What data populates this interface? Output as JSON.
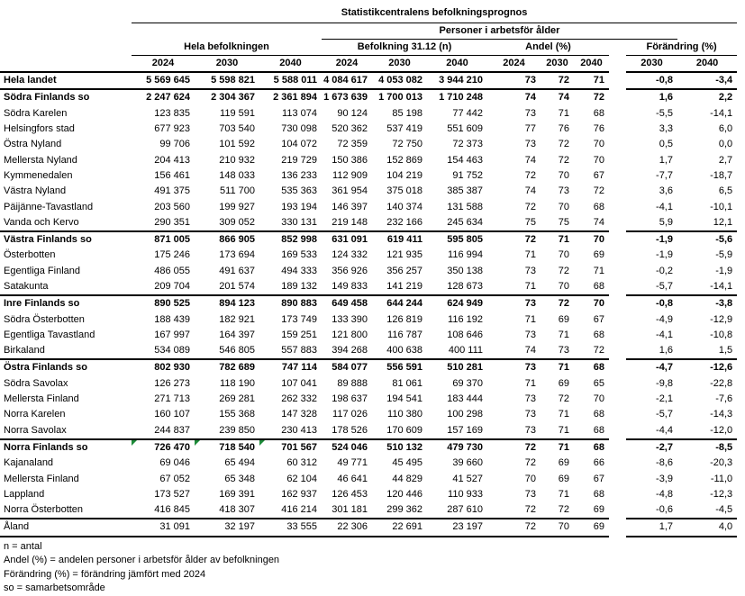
{
  "title": "Statistikcentralens befolkningsprognos",
  "header": {
    "working_age_label": "Personer i arbetsför ålder",
    "groups": [
      {
        "label": "Hela befolkningen",
        "years": [
          "2024",
          "2030",
          "2040"
        ]
      },
      {
        "label": "Befolkning 31.12 (n)",
        "years": [
          "2024",
          "2030",
          "2040"
        ]
      },
      {
        "label": "Andel (%)",
        "years": [
          "2024",
          "2030",
          "2040"
        ]
      },
      {
        "label": "Förändring (%)",
        "years": [
          "2030",
          "2040"
        ]
      }
    ]
  },
  "colors": {
    "error_flag_green": "#1f8c3b",
    "text": "#000000",
    "background": "#ffffff"
  },
  "table": {
    "separator_row_indices": [
      1,
      10,
      14,
      18,
      23,
      28
    ],
    "rows": [
      {
        "name": "Hela landet",
        "bold": true,
        "values": [
          "5 569 645",
          "5 598 821",
          "5 588 011",
          "4 084 617",
          "4 053 082",
          "3 944 210",
          "73",
          "72",
          "71",
          "-0,8",
          "-3,4"
        ]
      },
      {
        "name": "Södra Finlands so",
        "bold": true,
        "values": [
          "2 247 624",
          "2 304 367",
          "2 361 894",
          "1 673 639",
          "1 700 013",
          "1 710 248",
          "74",
          "74",
          "72",
          "1,6",
          "2,2"
        ]
      },
      {
        "name": "Södra Karelen",
        "bold": false,
        "values": [
          "123 835",
          "119 591",
          "113 074",
          "90 124",
          "85 198",
          "77 442",
          "73",
          "71",
          "68",
          "-5,5",
          "-14,1"
        ]
      },
      {
        "name": "Helsingfors stad",
        "bold": false,
        "values": [
          "677 923",
          "703 540",
          "730 098",
          "520 362",
          "537 419",
          "551 609",
          "77",
          "76",
          "76",
          "3,3",
          "6,0"
        ]
      },
      {
        "name": "Östra Nyland",
        "bold": false,
        "values": [
          "99 706",
          "101 592",
          "104 072",
          "72 359",
          "72 750",
          "72 373",
          "73",
          "72",
          "70",
          "0,5",
          "0,0"
        ]
      },
      {
        "name": "Mellersta Nyland",
        "bold": false,
        "values": [
          "204 413",
          "210 932",
          "219 729",
          "150 386",
          "152 869",
          "154 463",
          "74",
          "72",
          "70",
          "1,7",
          "2,7"
        ]
      },
      {
        "name": "Kymmenedalen",
        "bold": false,
        "values": [
          "156 461",
          "148 033",
          "136 233",
          "112 909",
          "104 219",
          "91 752",
          "72",
          "70",
          "67",
          "-7,7",
          "-18,7"
        ]
      },
      {
        "name": "Västra Nyland",
        "bold": false,
        "values": [
          "491 375",
          "511 700",
          "535 363",
          "361 954",
          "375 018",
          "385 387",
          "74",
          "73",
          "72",
          "3,6",
          "6,5"
        ]
      },
      {
        "name": "Päijänne-Tavastland",
        "bold": false,
        "values": [
          "203 560",
          "199 927",
          "193 194",
          "146 397",
          "140 374",
          "131 588",
          "72",
          "70",
          "68",
          "-4,1",
          "-10,1"
        ]
      },
      {
        "name": "Vanda och Kervo",
        "bold": false,
        "values": [
          "290 351",
          "309 052",
          "330 131",
          "219 148",
          "232 166",
          "245 634",
          "75",
          "75",
          "74",
          "5,9",
          "12,1"
        ]
      },
      {
        "name": "Västra Finlands so",
        "bold": true,
        "values": [
          "871 005",
          "866 905",
          "852 998",
          "631 091",
          "619 411",
          "595 805",
          "72",
          "71",
          "70",
          "-1,9",
          "-5,6"
        ]
      },
      {
        "name": "Österbotten",
        "bold": false,
        "values": [
          "175 246",
          "173 694",
          "169 533",
          "124 332",
          "121 935",
          "116 994",
          "71",
          "70",
          "69",
          "-1,9",
          "-5,9"
        ]
      },
      {
        "name": "Egentliga Finland",
        "bold": false,
        "values": [
          "486 055",
          "491 637",
          "494 333",
          "356 926",
          "356 257",
          "350 138",
          "73",
          "72",
          "71",
          "-0,2",
          "-1,9"
        ]
      },
      {
        "name": "Satakunta",
        "bold": false,
        "values": [
          "209 704",
          "201 574",
          "189 132",
          "149 833",
          "141 219",
          "128 673",
          "71",
          "70",
          "68",
          "-5,7",
          "-14,1"
        ]
      },
      {
        "name": "Inre Finlands so",
        "bold": true,
        "values": [
          "890 525",
          "894 123",
          "890 883",
          "649 458",
          "644 244",
          "624 949",
          "73",
          "72",
          "70",
          "-0,8",
          "-3,8"
        ]
      },
      {
        "name": "Södra Österbotten",
        "bold": false,
        "values": [
          "188 439",
          "182 921",
          "173 749",
          "133 390",
          "126 819",
          "116 192",
          "71",
          "69",
          "67",
          "-4,9",
          "-12,9"
        ]
      },
      {
        "name": "Egentliga Tavastland",
        "bold": false,
        "values": [
          "167 997",
          "164 397",
          "159 251",
          "121 800",
          "116 787",
          "108 646",
          "73",
          "71",
          "68",
          "-4,1",
          "-10,8"
        ]
      },
      {
        "name": "Birkaland",
        "bold": false,
        "values": [
          "534 089",
          "546 805",
          "557 883",
          "394 268",
          "400 638",
          "400 111",
          "74",
          "73",
          "72",
          "1,6",
          "1,5"
        ]
      },
      {
        "name": "Östra Finlands so",
        "bold": true,
        "values": [
          "802 930",
          "782 689",
          "747 114",
          "584 077",
          "556 591",
          "510 281",
          "73",
          "71",
          "68",
          "-4,7",
          "-12,6"
        ]
      },
      {
        "name": "Södra Savolax",
        "bold": false,
        "values": [
          "126 273",
          "118 190",
          "107 041",
          "89 888",
          "81 061",
          "69 370",
          "71",
          "69",
          "65",
          "-9,8",
          "-22,8"
        ]
      },
      {
        "name": "Mellersta Finland",
        "bold": false,
        "values": [
          "271 713",
          "269 281",
          "262 332",
          "198 637",
          "194 541",
          "183 444",
          "73",
          "72",
          "70",
          "-2,1",
          "-7,6"
        ]
      },
      {
        "name": "Norra Karelen",
        "bold": false,
        "values": [
          "160 107",
          "155 368",
          "147 328",
          "117 026",
          "110 380",
          "100 298",
          "73",
          "71",
          "68",
          "-5,7",
          "-14,3"
        ]
      },
      {
        "name": "Norra Savolax",
        "bold": false,
        "values": [
          "244 837",
          "239 850",
          "230 413",
          "178 526",
          "170 609",
          "157 169",
          "73",
          "71",
          "68",
          "-4,4",
          "-12,0"
        ]
      },
      {
        "name": "Norra Finlands so",
        "bold": true,
        "error_flags": [
          0,
          1,
          2
        ],
        "values": [
          "726 470",
          "718 540",
          "701 567",
          "524 046",
          "510 132",
          "479 730",
          "72",
          "71",
          "68",
          "-2,7",
          "-8,5"
        ]
      },
      {
        "name": "Kajanaland",
        "bold": false,
        "values": [
          "69 046",
          "65 494",
          "60 312",
          "49 771",
          "45 495",
          "39 660",
          "72",
          "69",
          "66",
          "-8,6",
          "-20,3"
        ]
      },
      {
        "name": "Mellersta Finland",
        "bold": false,
        "values": [
          "67 052",
          "65 348",
          "62 104",
          "46 641",
          "44 829",
          "41 527",
          "70",
          "69",
          "67",
          "-3,9",
          "-11,0"
        ]
      },
      {
        "name": "Lappland",
        "bold": false,
        "values": [
          "173 527",
          "169 391",
          "162 937",
          "126 453",
          "120 446",
          "110 933",
          "73",
          "71",
          "68",
          "-4,8",
          "-12,3"
        ]
      },
      {
        "name": "Norra Österbotten",
        "bold": false,
        "values": [
          "416 845",
          "418 307",
          "416 214",
          "301 181",
          "299 362",
          "287 610",
          "72",
          "72",
          "69",
          "-0,6",
          "-4,5"
        ]
      },
      {
        "name": "Åland",
        "bold": false,
        "values": [
          "31 091",
          "32 197",
          "33 555",
          "22 306",
          "22 691",
          "23 197",
          "72",
          "70",
          "69",
          "1,7",
          "4,0"
        ]
      }
    ]
  },
  "footnotes": [
    "n = antal",
    "Andel (%) = andelen personer i arbetsför ålder av befolkningen",
    "Förändring (%) = förändring jämfört med 2024",
    "so = samarbetsområde"
  ]
}
